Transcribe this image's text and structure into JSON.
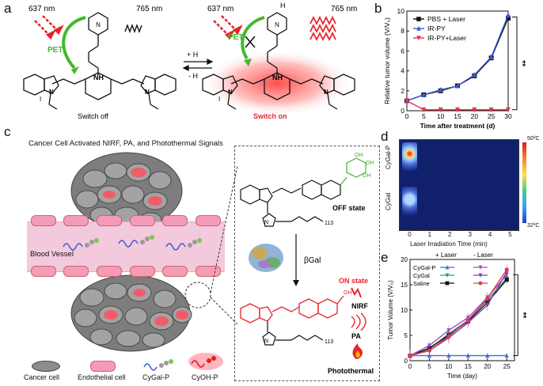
{
  "panel_labels": {
    "a": "a",
    "b": "b",
    "c": "c",
    "d": "d",
    "e": "e"
  },
  "panel_a": {
    "left": {
      "excite": "637 nm",
      "emit": "765 nm",
      "pet": "PET",
      "nh": "NH",
      "state": "Switch off"
    },
    "right": {
      "excite": "637 nm",
      "emit": "765 nm",
      "pet": "PET",
      "nh": "NH",
      "hplus": "H",
      "state": "Switch on"
    },
    "equilibrium": {
      "forward": "+ H",
      "reverse": "- H"
    },
    "counter_ion": "I"
  },
  "panel_c": {
    "title": "Cancer Cell Activated NIRF, PA, and Photothermal Signals",
    "blood_vessel": "Blood Vessel",
    "off_state": "OFF state",
    "on_state": "ON state",
    "enzyme": "βGal",
    "subscript": "113",
    "signals": {
      "nirf": "NIRF",
      "pa": "PA",
      "photothermal": "Photothermal"
    },
    "legend": [
      "Cancer cell",
      "Endothelial cell",
      "CyGal-P",
      "CyOH-P"
    ]
  },
  "panel_d": {
    "rows": [
      "CyGal-P",
      "CyGal"
    ],
    "xlabel": "Laser Irradiation Time (min)",
    "ticks": [
      "0",
      "1",
      "2",
      "3",
      "4",
      "5"
    ],
    "scale_max": "50ºC",
    "scale_min": "32ºC"
  },
  "chart_data": [
    {
      "type": "line",
      "panel": "b",
      "xlabel": "Time after treatment (d)",
      "ylabel": "Relative tumor volume (V/V₀)",
      "x": [
        0,
        5,
        10,
        15,
        20,
        25,
        30
      ],
      "xlim": [
        0,
        30
      ],
      "ylim": [
        0,
        10
      ],
      "xticks": [
        "0",
        "5",
        "10",
        "15",
        "20",
        "25",
        "30"
      ],
      "yticks": [
        "0",
        "2",
        "4",
        "6",
        "8",
        "10"
      ],
      "legend_position": "top-left",
      "significance": "**",
      "series": [
        {
          "name": "PBS + Laser",
          "color": "#111111",
          "marker": "square",
          "values": [
            1.0,
            1.6,
            2.0,
            2.5,
            3.5,
            5.3,
            9.3
          ]
        },
        {
          "name": "IR-PY",
          "color": "#3d5ad6",
          "marker": "triangle-up",
          "values": [
            1.0,
            1.6,
            2.1,
            2.5,
            3.6,
            5.4,
            9.6
          ]
        },
        {
          "name": "IR-PY+Laser",
          "color": "#e8334f",
          "marker": "triangle-down",
          "values": [
            1.0,
            0.1,
            0.1,
            0.1,
            0.1,
            0.1,
            0.1
          ]
        }
      ]
    },
    {
      "type": "line",
      "panel": "e",
      "xlabel": "Time (day)",
      "ylabel": "Tumor Volume (V/V₀)",
      "x": [
        0,
        5,
        10,
        15,
        20,
        25
      ],
      "xlim": [
        0,
        27
      ],
      "ylim": [
        0,
        20
      ],
      "xticks": [
        "0",
        "5",
        "10",
        "15",
        "20",
        "25"
      ],
      "yticks": [
        "0",
        "5",
        "10",
        "15",
        "20"
      ],
      "legend_headers": [
        "+ Laser",
        "- Laser"
      ],
      "significance": "**",
      "legend_rows": [
        "CyGal-P",
        "CyGal",
        "Saline"
      ],
      "series": [
        {
          "name": "CyGal-P",
          "group": "+ Laser",
          "color": "#3d6fd6",
          "marker": "triangle-up",
          "values": [
            1.0,
            1.0,
            1.0,
            1.0,
            1.0,
            1.0
          ]
        },
        {
          "name": "CyGal",
          "group": "+ Laser",
          "color": "#2e9a6a",
          "marker": "triangle-down",
          "values": [
            1.0,
            2.3,
            5.3,
            8.0,
            12.0,
            16.3
          ]
        },
        {
          "name": "Saline",
          "group": "+ Laser",
          "color": "#111111",
          "marker": "square",
          "values": [
            1.0,
            2.5,
            5.0,
            7.8,
            11.5,
            16.0
          ]
        },
        {
          "name": "CyGal-P",
          "group": "- Laser",
          "color": "#a24dd6",
          "marker": "triangle-down",
          "values": [
            1.0,
            3.0,
            6.0,
            8.5,
            12.5,
            17.0
          ]
        },
        {
          "name": "CyGal",
          "group": "- Laser",
          "color": "#7a3fb0",
          "marker": "triangle-down",
          "values": [
            1.0,
            2.0,
            4.5,
            7.5,
            11.0,
            17.5
          ]
        },
        {
          "name": "Saline",
          "group": "- Laser",
          "color": "#e23a4e",
          "marker": "circle",
          "values": [
            1.0,
            2.0,
            4.8,
            8.0,
            12.3,
            18.0
          ]
        }
      ]
    }
  ],
  "colors": {
    "pet_green": "#44b82d",
    "red": "#e8242b",
    "blue": "#3d5ad6",
    "vessel_pink": "#f5c8dc"
  }
}
